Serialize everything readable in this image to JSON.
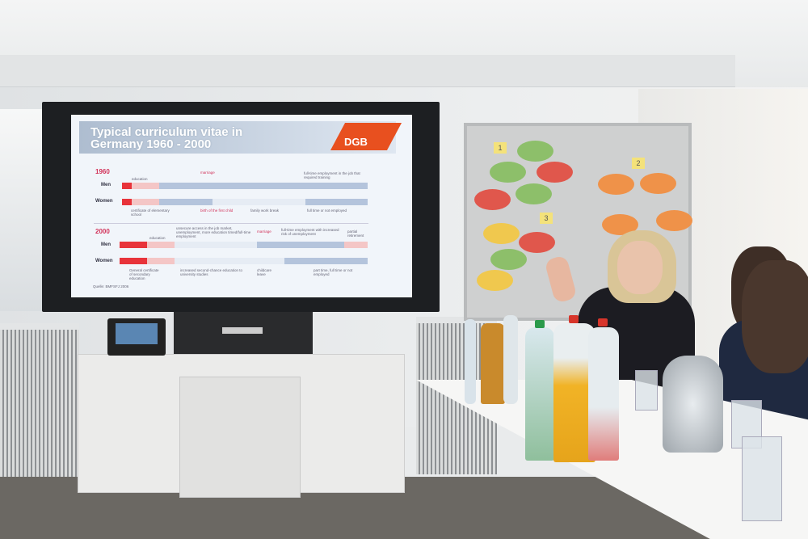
{
  "slide": {
    "title_line1": "Typical curriculum vitae in",
    "title_line2": "Germany 1960 - 2000",
    "logo": "DGB",
    "section_1960": {
      "year": "1960",
      "men": "Men",
      "women": "Women",
      "notes": [
        "education",
        "marriage",
        "full-time employment in the job that required training",
        "certificate of elementary school",
        "birth of the first child",
        "family work break",
        "full time or not employed"
      ]
    },
    "section_2000": {
      "year": "2000",
      "men": "Men",
      "women": "Women",
      "notes": [
        "education",
        "unsecure access in the job market, unemployment, more education timed/full-time employment",
        "marriage",
        "full-time employment with increased risk of unemployment",
        "partial retirement",
        "General certificate of secondary education",
        "increased second-chance education to university studies",
        "childcare leave",
        "part time, full time or not employed"
      ]
    },
    "source": "Quelle: BMFSFJ 2006",
    "colors": {
      "accent": "#e8501f",
      "highlight": "#d2335a",
      "bar_red": "#e8333a",
      "bar_pink": "#f4c6c6",
      "bar_blue": "#b4c4dc"
    }
  },
  "whiteboard": {
    "numbers": [
      "1",
      "2",
      "3"
    ],
    "sticky_colors": [
      "#8dbf6a",
      "#e0574c",
      "#f0c84e",
      "#ef9249"
    ]
  }
}
